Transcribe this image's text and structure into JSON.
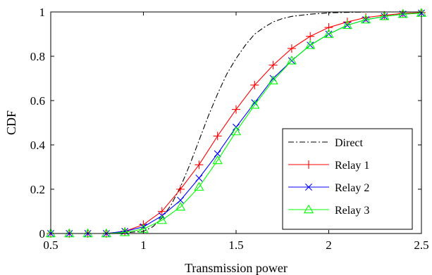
{
  "chart_data": {
    "type": "line",
    "title": "",
    "xlabel": "Transmission power",
    "ylabel": "CDF",
    "xlim": [
      0.5,
      2.5
    ],
    "ylim": [
      0,
      1
    ],
    "xticks": [
      0.5,
      1,
      1.5,
      2,
      2.5
    ],
    "xtick_labels": [
      "0.5",
      "1",
      "1.5",
      "2",
      "2.5"
    ],
    "yticks": [
      0,
      0.2,
      0.4,
      0.6,
      0.8,
      1
    ],
    "ytick_labels": [
      "0",
      "0.2",
      "0.4",
      "0.6",
      "0.8",
      "1"
    ],
    "grid": false,
    "legend_position": "lower-right",
    "series": [
      {
        "name": "Direct",
        "color": "#000000",
        "style": "dash-dot",
        "marker": "none",
        "x": [
          0.5,
          0.6,
          0.7,
          0.8,
          0.9,
          1.0,
          1.05,
          1.1,
          1.15,
          1.2,
          1.25,
          1.3,
          1.35,
          1.4,
          1.45,
          1.5,
          1.55,
          1.6,
          1.65,
          1.7,
          1.75,
          1.8,
          1.9,
          2.0,
          2.1,
          2.2,
          2.3,
          2.4,
          2.5
        ],
        "y": [
          0,
          0,
          0,
          0,
          0.003,
          0.01,
          0.03,
          0.07,
          0.13,
          0.21,
          0.31,
          0.42,
          0.53,
          0.63,
          0.72,
          0.79,
          0.85,
          0.9,
          0.93,
          0.955,
          0.97,
          0.98,
          0.99,
          0.996,
          0.998,
          1,
          1,
          1,
          1
        ]
      },
      {
        "name": "Relay 1",
        "color": "#ff0000",
        "style": "solid",
        "marker": "plus",
        "x": [
          0.5,
          0.6,
          0.7,
          0.8,
          0.9,
          1.0,
          1.1,
          1.2,
          1.3,
          1.4,
          1.5,
          1.6,
          1.7,
          1.8,
          1.9,
          2.0,
          2.1,
          2.2,
          2.3,
          2.4,
          2.5
        ],
        "y": [
          0,
          0,
          0,
          0,
          0.01,
          0.04,
          0.1,
          0.2,
          0.31,
          0.44,
          0.56,
          0.67,
          0.76,
          0.835,
          0.89,
          0.93,
          0.955,
          0.975,
          0.985,
          0.993,
          0.997
        ]
      },
      {
        "name": "Relay 2",
        "color": "#0000ff",
        "style": "solid",
        "marker": "x",
        "x": [
          0.5,
          0.6,
          0.7,
          0.8,
          0.9,
          1.0,
          1.1,
          1.2,
          1.3,
          1.4,
          1.5,
          1.6,
          1.7,
          1.8,
          1.9,
          2.0,
          2.1,
          2.2,
          2.3,
          2.4,
          2.5
        ],
        "y": [
          0,
          0,
          0,
          0,
          0.01,
          0.03,
          0.08,
          0.15,
          0.25,
          0.36,
          0.48,
          0.59,
          0.7,
          0.78,
          0.85,
          0.9,
          0.94,
          0.965,
          0.98,
          0.99,
          0.995
        ]
      },
      {
        "name": "Relay 3",
        "color": "#00ff00",
        "style": "solid",
        "marker": "triangle",
        "x": [
          0.5,
          0.6,
          0.7,
          0.8,
          0.9,
          1.0,
          1.1,
          1.2,
          1.3,
          1.4,
          1.5,
          1.6,
          1.7,
          1.8,
          1.9,
          2.0,
          2.1,
          2.2,
          2.3,
          2.4,
          2.5
        ],
        "y": [
          0,
          0,
          0,
          0,
          0.005,
          0.02,
          0.06,
          0.12,
          0.21,
          0.33,
          0.46,
          0.58,
          0.69,
          0.78,
          0.85,
          0.9,
          0.94,
          0.965,
          0.98,
          0.99,
          0.995
        ]
      }
    ]
  }
}
